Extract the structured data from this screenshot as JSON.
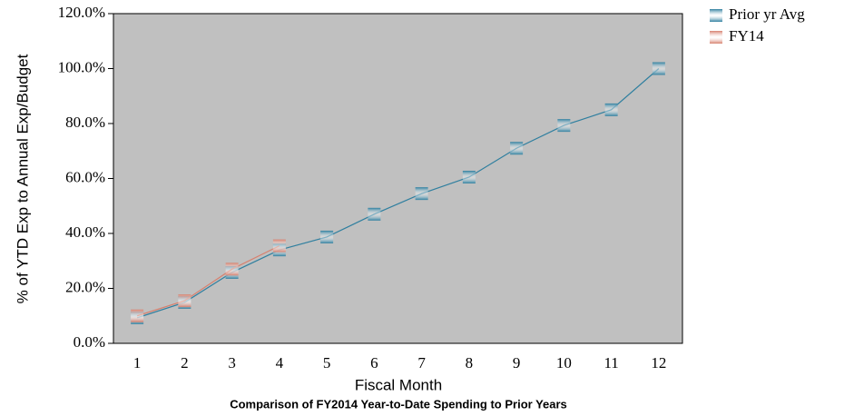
{
  "chart_data": {
    "type": "line",
    "title": "Comparison of FY2014 Year-to-Date Spending to Prior Years",
    "x_label": "Fiscal Month",
    "y_label": "% of YTD Exp to Annual Exp/Budget",
    "categories": [
      "1",
      "2",
      "3",
      "4",
      "5",
      "6",
      "7",
      "8",
      "9",
      "10",
      "11",
      "12"
    ],
    "series": [
      {
        "name": "Prior yr Avg",
        "color": "#2f7f9f",
        "values": [
          9.3,
          14.9,
          25.8,
          34,
          38.7,
          47,
          54.5,
          60.5,
          71,
          79.3,
          85,
          100
        ]
      },
      {
        "name": "FY14",
        "color": "#d7806e",
        "values": [
          10,
          15.5,
          27,
          35.5,
          null,
          null,
          null,
          null,
          null,
          null,
          null,
          null
        ]
      }
    ],
    "ylim": [
      0,
      120
    ],
    "yticks": [
      {
        "value": 0,
        "label": "0.0%"
      },
      {
        "value": 20,
        "label": "20.0%"
      },
      {
        "value": 40,
        "label": "40.0%"
      },
      {
        "value": 60,
        "label": "60.0%"
      },
      {
        "value": 80,
        "label": "80.0%"
      },
      {
        "value": 100,
        "label": "100.0%"
      },
      {
        "value": 120,
        "label": "120.0%"
      }
    ],
    "legend": "right",
    "plot_background": "#c0c0c0"
  }
}
